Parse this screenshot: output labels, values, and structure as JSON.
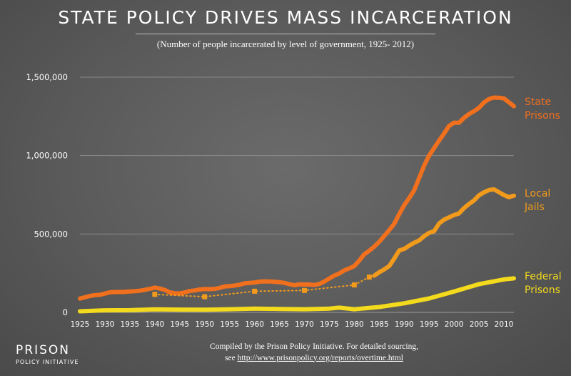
{
  "header": {
    "title": "STATE POLICY DRIVES MASS INCARCERATION",
    "subtitle": "(Number of people incarcerated by level of government, 1925- 2012)"
  },
  "footer": {
    "credit_line1": "Compiled by the Prison Policy Initiative. For detailed sourcing,",
    "credit_prefix": "see",
    "credit_link": "http://www.prisonpolicy.org/reports/overtime.html"
  },
  "logo": {
    "main": "PRISON",
    "sub": "POLICY INITIATIVE"
  },
  "colors": {
    "state": "#f0701e",
    "jails": "#f29a1c",
    "federal": "#f3da1c",
    "grid": "#8a8a8a",
    "axis_text": "#ffffff"
  },
  "chart_data": {
    "type": "line",
    "title": "STATE POLICY DRIVES MASS INCARCERATION",
    "subtitle": "(Number of people incarcerated by level of government, 1925- 2012)",
    "xlabel": "",
    "ylabel": "",
    "xlim": [
      1925,
      2012
    ],
    "ylim": [
      0,
      1500000
    ],
    "grid": true,
    "y_ticks": [
      0,
      500000,
      1000000,
      1500000
    ],
    "y_tick_labels": [
      "0",
      "500,000",
      "1,000,000",
      "1,500,000"
    ],
    "x_ticks": [
      1925,
      1930,
      1935,
      1940,
      1945,
      1950,
      1955,
      1960,
      1965,
      1970,
      1975,
      1980,
      1985,
      1990,
      1995,
      2000,
      2005,
      2010
    ],
    "series": [
      {
        "name": "State Prisons",
        "label_lines": [
          "State",
          "Prisons"
        ],
        "style": "solid",
        "color": "#f0701e",
        "points": [
          [
            1925,
            88000
          ],
          [
            1926,
            96000
          ],
          [
            1927,
            105000
          ],
          [
            1928,
            110000
          ],
          [
            1929,
            112000
          ],
          [
            1930,
            120000
          ],
          [
            1931,
            128000
          ],
          [
            1932,
            130000
          ],
          [
            1933,
            130000
          ],
          [
            1934,
            131000
          ],
          [
            1935,
            133000
          ],
          [
            1936,
            135000
          ],
          [
            1937,
            138000
          ],
          [
            1938,
            144000
          ],
          [
            1939,
            150000
          ],
          [
            1940,
            158000
          ],
          [
            1941,
            152000
          ],
          [
            1942,
            143000
          ],
          [
            1943,
            128000
          ],
          [
            1944,
            122000
          ],
          [
            1945,
            121000
          ],
          [
            1946,
            127000
          ],
          [
            1947,
            136000
          ],
          [
            1948,
            140000
          ],
          [
            1949,
            146000
          ],
          [
            1950,
            149000
          ],
          [
            1951,
            148000
          ],
          [
            1952,
            150000
          ],
          [
            1953,
            156000
          ],
          [
            1954,
            165000
          ],
          [
            1955,
            168000
          ],
          [
            1956,
            171000
          ],
          [
            1957,
            176000
          ],
          [
            1958,
            185000
          ],
          [
            1959,
            188000
          ],
          [
            1960,
            190000
          ],
          [
            1961,
            196000
          ],
          [
            1962,
            198000
          ],
          [
            1963,
            197000
          ],
          [
            1964,
            195000
          ],
          [
            1965,
            193000
          ],
          [
            1966,
            188000
          ],
          [
            1967,
            180000
          ],
          [
            1968,
            173000
          ],
          [
            1969,
            179000
          ],
          [
            1970,
            178000
          ],
          [
            1971,
            178000
          ],
          [
            1972,
            175000
          ],
          [
            1973,
            181000
          ],
          [
            1974,
            197000
          ],
          [
            1975,
            216000
          ],
          [
            1976,
            235000
          ],
          [
            1977,
            248000
          ],
          [
            1978,
            268000
          ],
          [
            1979,
            281000
          ],
          [
            1980,
            295000
          ],
          [
            1981,
            331000
          ],
          [
            1982,
            370000
          ],
          [
            1983,
            393000
          ],
          [
            1984,
            419000
          ],
          [
            1985,
            450000
          ],
          [
            1986,
            487000
          ],
          [
            1987,
            525000
          ],
          [
            1988,
            565000
          ],
          [
            1989,
            627000
          ],
          [
            1990,
            684000
          ],
          [
            1991,
            728000
          ],
          [
            1992,
            778000
          ],
          [
            1993,
            857000
          ],
          [
            1994,
            936000
          ],
          [
            1995,
            1000000
          ],
          [
            1996,
            1048000
          ],
          [
            1997,
            1096000
          ],
          [
            1998,
            1141000
          ],
          [
            1999,
            1189000
          ],
          [
            2000,
            1210000
          ],
          [
            2001,
            1209000
          ],
          [
            2002,
            1241000
          ],
          [
            2003,
            1265000
          ],
          [
            2004,
            1283000
          ],
          [
            2005,
            1305000
          ],
          [
            2006,
            1339000
          ],
          [
            2007,
            1361000
          ],
          [
            2008,
            1370000
          ],
          [
            2009,
            1369000
          ],
          [
            2010,
            1365000
          ],
          [
            2011,
            1340000
          ],
          [
            2012,
            1315000
          ]
        ]
      },
      {
        "name": "Local Jails",
        "label_lines": [
          "Local",
          "Jails"
        ],
        "style": "solid-after-1984",
        "color": "#f29a1c",
        "points": [
          [
            1984,
            234000
          ],
          [
            1985,
            256000
          ],
          [
            1986,
            274000
          ],
          [
            1987,
            295000
          ],
          [
            1988,
            343000
          ],
          [
            1989,
            395000
          ],
          [
            1990,
            405000
          ],
          [
            1991,
            426000
          ],
          [
            1992,
            444000
          ],
          [
            1993,
            459000
          ],
          [
            1994,
            486000
          ],
          [
            1995,
            507000
          ],
          [
            1996,
            518000
          ],
          [
            1997,
            567000
          ],
          [
            1998,
            592000
          ],
          [
            1999,
            606000
          ],
          [
            2000,
            621000
          ],
          [
            2001,
            631000
          ],
          [
            2002,
            665000
          ],
          [
            2003,
            691000
          ],
          [
            2004,
            714000
          ],
          [
            2005,
            747000
          ],
          [
            2006,
            766000
          ],
          [
            2007,
            780000
          ],
          [
            2008,
            785000
          ],
          [
            2009,
            767000
          ],
          [
            2010,
            748000
          ],
          [
            2011,
            735000
          ],
          [
            2012,
            744000
          ]
        ],
        "survey_points": [
          [
            1940,
            115000
          ],
          [
            1950,
            100000
          ],
          [
            1960,
            135000
          ],
          [
            1970,
            140000
          ],
          [
            1980,
            175000
          ],
          [
            1983,
            225000
          ]
        ]
      },
      {
        "name": "Federal Prisons",
        "label_lines": [
          "Federal",
          "Prisons"
        ],
        "style": "solid",
        "color": "#f3da1c",
        "points": [
          [
            1925,
            7000
          ],
          [
            1930,
            13000
          ],
          [
            1935,
            14000
          ],
          [
            1940,
            19000
          ],
          [
            1945,
            18000
          ],
          [
            1950,
            17000
          ],
          [
            1955,
            20000
          ],
          [
            1960,
            24000
          ],
          [
            1965,
            22000
          ],
          [
            1970,
            20000
          ],
          [
            1975,
            24000
          ],
          [
            1977,
            30000
          ],
          [
            1980,
            20000
          ],
          [
            1985,
            34000
          ],
          [
            1990,
            58000
          ],
          [
            1995,
            89000
          ],
          [
            2000,
            133000
          ],
          [
            2005,
            180000
          ],
          [
            2010,
            210000
          ],
          [
            2012,
            217000
          ]
        ]
      }
    ]
  }
}
